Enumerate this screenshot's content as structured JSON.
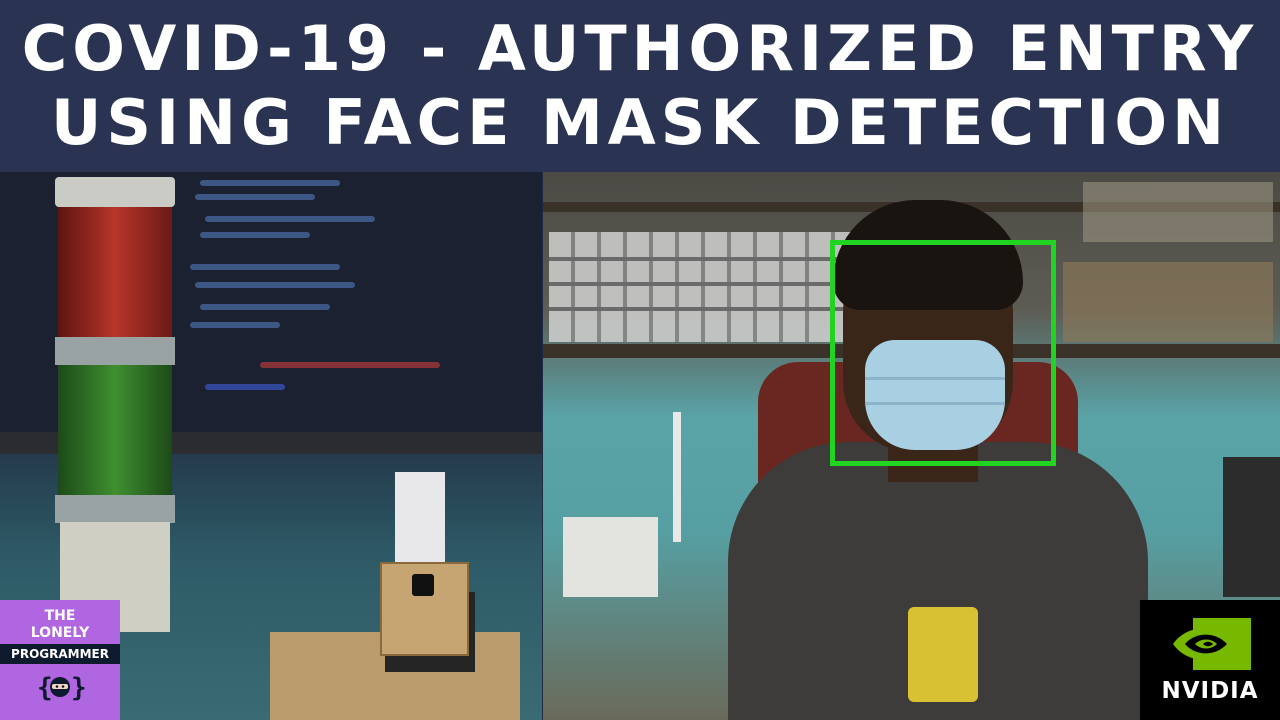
{
  "banner": {
    "title_line1": "COVID-19 - AUTHORIZED ENTRY",
    "title_line2": "USING FACE MASK DETECTION"
  },
  "detection": {
    "box_color": "#22d422"
  },
  "badges": {
    "channel": {
      "line1": "THE",
      "line2": "LONELY",
      "line3": "PROGRAMMER",
      "bg_color": "#b066e0",
      "icon": "ninja-icon"
    },
    "sponsor": {
      "word": "NVIDIA",
      "icon": "nvidia-eye-icon",
      "accent": "#76b900"
    }
  },
  "colors": {
    "banner_bg": "#2a3452",
    "banner_text": "#ffffff"
  }
}
